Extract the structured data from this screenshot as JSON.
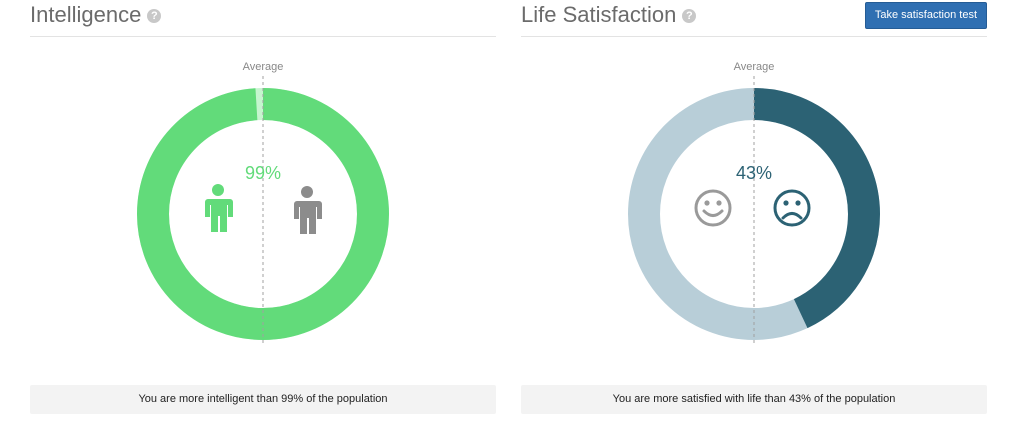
{
  "intelligence": {
    "title": "Intelligence",
    "help_icon": "question-circle-icon",
    "average_label": "Average",
    "percentile_label": "99%",
    "percentile": 99,
    "colors": {
      "value": "#62db7a",
      "rest": "#c6f5cf",
      "average_icon": "#8c8c8c",
      "user_icon": "#62db7a"
    },
    "icons": [
      "person-icon-green",
      "person-icon-gray"
    ],
    "caption": "You are more intelligent than 99% of the population"
  },
  "life_satisfaction": {
    "title": "Life Satisfaction",
    "help_icon": "question-circle-icon",
    "button_label": "Take satisfaction test",
    "average_label": "Average",
    "percentile_label": "43%",
    "percentile": 43,
    "colors": {
      "value": "#2c6274",
      "rest": "#b8ced8",
      "text": "#2c6274",
      "smiley": "#9a9a9a",
      "frown": "#2c6274"
    },
    "icons": [
      "smiley-face-icon",
      "sad-face-icon"
    ],
    "caption": "You are more satisfied with life than 43% of the population"
  }
}
